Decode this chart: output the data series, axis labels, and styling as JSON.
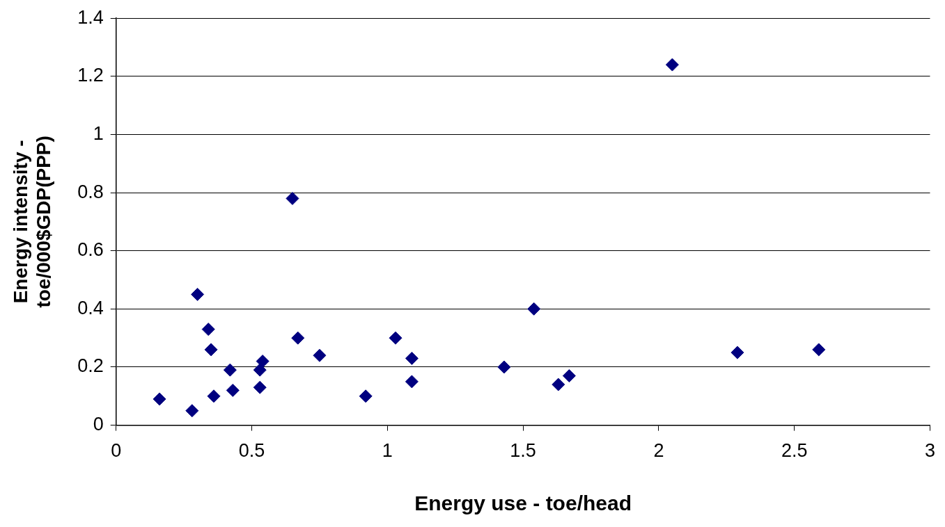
{
  "chart_data": {
    "type": "scatter",
    "xlabel": "Energy use - toe/head",
    "ylabel": "Energy intensity - toe/000$GDP(PPP)",
    "x": [
      0.16,
      0.28,
      0.3,
      0.34,
      0.35,
      0.36,
      0.42,
      0.43,
      0.53,
      0.53,
      0.54,
      0.65,
      0.67,
      0.75,
      0.92,
      1.03,
      1.09,
      1.09,
      1.43,
      1.54,
      1.63,
      1.67,
      2.05,
      2.29,
      2.59
    ],
    "series": [
      {
        "color": "#000080",
        "values": [
          0.09,
          0.05,
          0.45,
          0.33,
          0.26,
          0.1,
          0.19,
          0.12,
          0.19,
          0.13,
          0.22,
          0.78,
          0.3,
          0.24,
          0.1,
          0.3,
          0.23,
          0.15,
          0.2,
          0.4,
          0.14,
          0.17,
          1.24,
          0.25,
          0.26
        ]
      }
    ],
    "xlim": [
      0,
      3
    ],
    "xticks": [
      0,
      0.5,
      1,
      1.5,
      2,
      2.5,
      3
    ],
    "ylim": [
      0,
      1.4
    ],
    "yticks": [
      0,
      0.2,
      0.4,
      0.6,
      0.8,
      1,
      1.2,
      1.4
    ],
    "grid": "y",
    "legend": false,
    "marker": "diamond"
  }
}
